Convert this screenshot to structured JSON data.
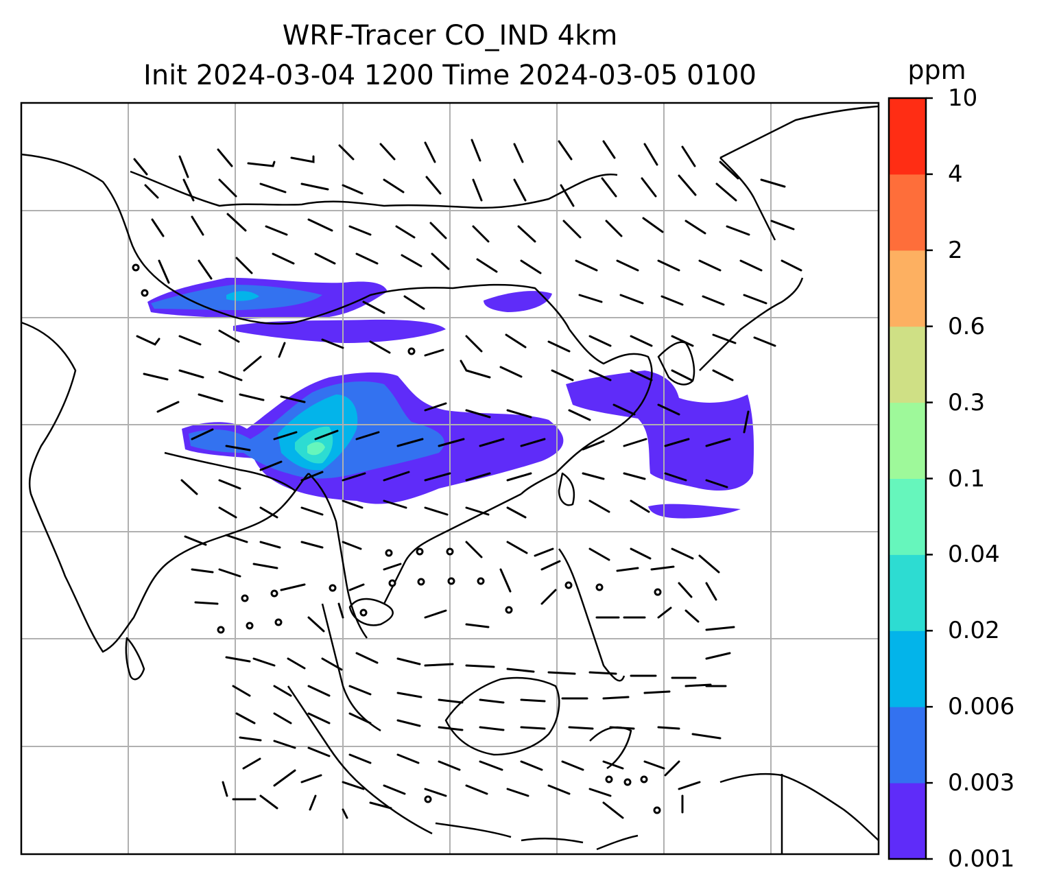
{
  "title": {
    "line1": "WRF-Tracer CO_IND 4km",
    "line2": "Init 2024-03-04 1200 Time 2024-03-05 0100"
  },
  "colorbar": {
    "unit": "ppm",
    "levels": [
      "0.001",
      "0.003",
      "0.006",
      "0.02",
      "0.04",
      "0.1",
      "0.3",
      "0.6",
      "2",
      "4",
      "10"
    ],
    "colors": [
      "#5f2cf9",
      "#3372f0",
      "#03b4ea",
      "#2ddcd2",
      "#66f6bc",
      "#9ef99a",
      "#cfe085",
      "#fdb061",
      "#fe6e3a",
      "#ff2d14"
    ]
  },
  "map": {
    "gridlines": true,
    "coastlines": true,
    "wind_barbs": true,
    "field": "CO_IND tracer concentration"
  }
}
